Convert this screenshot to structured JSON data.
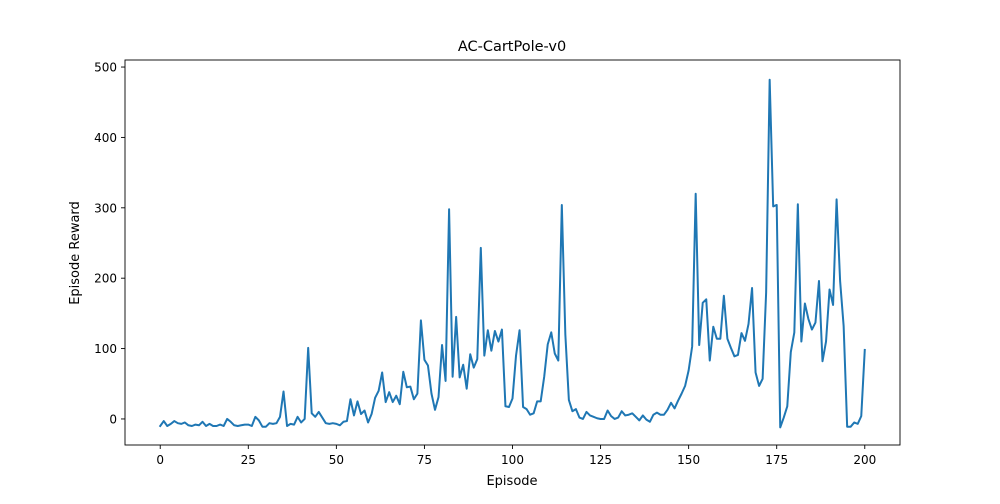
{
  "chart_data": {
    "type": "line",
    "title": "AC-CartPole-v0",
    "xlabel": "Episode",
    "ylabel": "Episode Reward",
    "xlim": [
      -10,
      210
    ],
    "ylim": [
      -37,
      510
    ],
    "xticks": [
      0,
      25,
      50,
      75,
      100,
      125,
      150,
      175,
      200
    ],
    "yticks": [
      0,
      100,
      200,
      300,
      400,
      500
    ],
    "grid": false,
    "legend": "none",
    "line_color": "#1f77b4",
    "series": [
      {
        "values": [
          -10,
          -3,
          -10,
          -7,
          -3,
          -6,
          -7,
          -5,
          -9,
          -10,
          -8,
          -9,
          -4,
          -10,
          -7,
          -10,
          -10,
          -8,
          -10,
          0,
          -4,
          -9,
          -10,
          -9,
          -8,
          -8,
          -10,
          3,
          -2,
          -11,
          -11,
          -6,
          -7,
          -6,
          3,
          39,
          -10,
          -7,
          -8,
          3,
          -5,
          0,
          101,
          8,
          3,
          10,
          2,
          -6,
          -7,
          -6,
          -7,
          -9,
          -4,
          -3,
          28,
          5,
          25,
          7,
          12,
          -5,
          7,
          30,
          40,
          66,
          24,
          38,
          24,
          33,
          21,
          67,
          45,
          46,
          28,
          36,
          140,
          84,
          76,
          36,
          13,
          31,
          105,
          54,
          298,
          60,
          145,
          59,
          77,
          43,
          92,
          73,
          85,
          243,
          90,
          126,
          97,
          125,
          110,
          127,
          18,
          17,
          29,
          90,
          126,
          17,
          14,
          6,
          8,
          25,
          25,
          60,
          106,
          123,
          93,
          83,
          304,
          120,
          27,
          11,
          14,
          2,
          0,
          10,
          5,
          3,
          1,
          0,
          0,
          12,
          4,
          0,
          2,
          11,
          5,
          6,
          8,
          3,
          -2,
          5,
          -1,
          -4,
          6,
          9,
          6,
          6,
          13,
          23,
          15,
          26,
          36,
          47,
          69,
          103,
          320,
          105,
          165,
          170,
          83,
          131,
          114,
          114,
          175,
          114,
          101,
          89,
          91,
          122,
          111,
          135,
          186,
          66,
          47,
          57,
          180,
          482,
          302,
          304,
          -12,
          2,
          18,
          95,
          123,
          305,
          110,
          164,
          142,
          127,
          137,
          196,
          82,
          110,
          184,
          162,
          312,
          196,
          132,
          -11,
          -11,
          -5,
          -7,
          4,
          98
        ]
      }
    ]
  }
}
